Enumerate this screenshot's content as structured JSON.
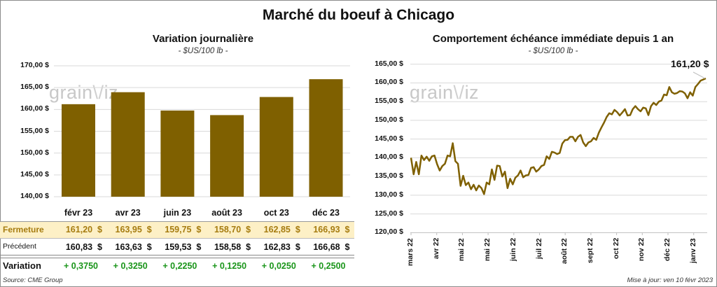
{
  "title": "Marché du boeuf à Chicago",
  "colors": {
    "bar": "#7f6000",
    "line": "#7f6000",
    "fermeture_bg": "#fdf0c6",
    "fermeture_text": "#a67c10",
    "variation_text": "#1a951a",
    "grid": "#d9d9d9"
  },
  "watermark": "grainwiz",
  "chart_data": [
    {
      "type": "bar",
      "title": "Variation  journalière",
      "subtitle": "- $US/100 lb -",
      "categories": [
        "févr 23",
        "avr 23",
        "juin 23",
        "août 23",
        "oct 23",
        "déc 23"
      ],
      "values": [
        161.2,
        163.95,
        159.75,
        158.7,
        162.85,
        166.93
      ],
      "ylim": [
        140,
        170
      ],
      "yticks": [
        "170,00 $",
        "165,00 $",
        "160,00 $",
        "155,00 $",
        "150,00 $",
        "145,00 $",
        "140,00 $"
      ],
      "grid": true
    },
    {
      "type": "line",
      "title": "Comportement  échéance immédiate depuis 1 an",
      "subtitle": "- $US/100 lb -",
      "ylim": [
        120,
        165
      ],
      "yticks": [
        "165,00 $",
        "160,00 $",
        "155,00 $",
        "150,00 $",
        "145,00 $",
        "140,00 $",
        "135,00 $",
        "130,00 $",
        "125,00 $",
        "120,00 $"
      ],
      "xticks": [
        "mars 22",
        "avr 22",
        "mai 22",
        "mai 22",
        "juin 22",
        "juil 22",
        "août 22",
        "sept 22",
        "oct 22",
        "nov 22",
        "déc 22",
        "janv 23"
      ],
      "values": [
        140,
        135.6,
        138.9,
        135.6,
        140.6,
        139.4,
        140.3,
        139.2,
        140.4,
        140.6,
        138.3,
        136.6,
        137.8,
        138.4,
        140.6,
        140.4,
        143.9,
        139.1,
        138.4,
        132.5,
        135.2,
        132.7,
        133.4,
        131.6,
        132.8,
        131.3,
        132.6,
        131.9,
        130.3,
        133.4,
        132.9,
        136.9,
        134.1,
        137.9,
        137.8,
        135,
        136.3,
        131.9,
        134.4,
        132.9,
        134.7,
        135.3,
        136.6,
        134.8,
        135.3,
        135.4,
        137.3,
        137.5,
        136.3,
        136.9,
        137.8,
        138.1,
        140.4,
        139.7,
        141.6,
        141.4,
        141,
        141.3,
        143.8,
        144.7,
        144.8,
        145.6,
        145.6,
        144.4,
        145.6,
        146.1,
        144.1,
        143.1,
        144.1,
        144.4,
        145.3,
        144.8,
        146.7,
        148.1,
        149.4,
        150.9,
        151.9,
        151.6,
        152.8,
        152.2,
        151.3,
        152.1,
        153,
        151.3,
        151.4,
        153,
        153.8,
        153,
        152.4,
        153.4,
        153.2,
        151.4,
        153.8,
        154.7,
        154.1,
        155,
        155.3,
        156.9,
        156.7,
        158.9,
        157.5,
        157.1,
        157.3,
        157.8,
        157.7,
        157.2,
        155.9,
        157.5,
        156.6,
        158.9,
        159.7,
        160.6,
        160.9,
        161.2
      ],
      "last_label": "161,20 $",
      "grid": true
    }
  ],
  "table": {
    "rows": [
      {
        "label": "Fermeture",
        "values": [
          "161,20  $",
          "163,95  $",
          "159,75  $",
          "158,70  $",
          "162,85  $",
          "166,93  $"
        ]
      },
      {
        "label": "Précédent",
        "values": [
          "160,83  $",
          "163,63  $",
          "159,53  $",
          "158,58  $",
          "162,83  $",
          "166,68  $"
        ]
      },
      {
        "label": "Variation",
        "values": [
          "+ 0,3750",
          "+ 0,3250",
          "+ 0,2250",
          "+ 0,1250",
          "+ 0,0250",
          "+ 0,2500"
        ]
      }
    ]
  },
  "source": "Source: CME Group",
  "updated": "Mise à jour: ven 10 févr 2023"
}
